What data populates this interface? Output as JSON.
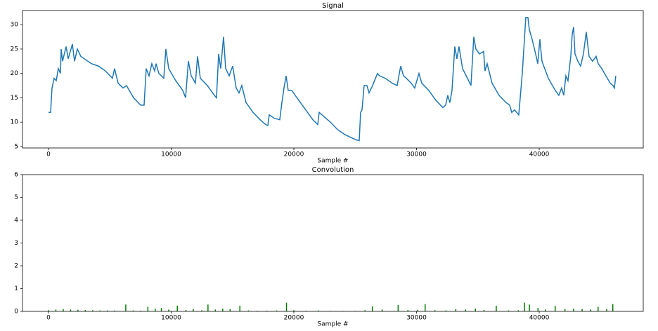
{
  "chart_data": [
    {
      "type": "line",
      "title": "Signal",
      "xlabel": "Sample #",
      "color": "#1f77b4",
      "x": [
        0,
        172,
        287,
        458,
        630,
        802,
        974,
        1031,
        1146,
        1433,
        1604,
        1948,
        2120,
        2349,
        2636,
        2922,
        3495,
        4068,
        4641,
        5214,
        5386,
        5672,
        6074,
        6360,
        6933,
        7506,
        7793,
        7964,
        8193,
        8423,
        8652,
        8767,
        8996,
        9397,
        9569,
        9798,
        10371,
        10944,
        11174,
        11403,
        11632,
        11976,
        12148,
        12377,
        12950,
        13523,
        13695,
        13867,
        14039,
        14268,
        14440,
        14726,
        15013,
        15300,
        15529,
        15758,
        16102,
        16675,
        17248,
        17706,
        17878,
        17993,
        18394,
        18852,
        19024,
        19196,
        19368,
        19539,
        19826,
        20399,
        20972,
        21545,
        21946,
        22061,
        22290,
        22977,
        23550,
        24123,
        24696,
        25155,
        25327,
        25441,
        25556,
        25728,
        25957,
        26129,
        26415,
        26816,
        26988,
        27447,
        28020,
        28421,
        28707,
        28937,
        29166,
        29567,
        29853,
        30197,
        30426,
        30999,
        31572,
        32145,
        32375,
        32546,
        32718,
        32890,
        33119,
        33291,
        33463,
        33750,
        34151,
        34437,
        34667,
        34838,
        35125,
        35469,
        35583,
        35755,
        36156,
        36729,
        37302,
        37589,
        37761,
        37990,
        38334,
        38620,
        38907,
        39079,
        39193,
        39422,
        39709,
        39881,
        40053,
        40225,
        40740,
        41313,
        41600,
        41829,
        42001,
        42173,
        42345,
        42574,
        42689,
        42803,
        42918,
        43147,
        43376,
        43605,
        43835,
        44064,
        44350,
        44637,
        44809,
        45096,
        45439,
        45783,
        46012,
        46127,
        46241
      ],
      "values": [
        12,
        12,
        17,
        19,
        18.5,
        21,
        20,
        25,
        22.5,
        25.5,
        23,
        26,
        22.5,
        25,
        23.5,
        23,
        22,
        21.5,
        20.5,
        19,
        21,
        18,
        17,
        17.5,
        15,
        13.5,
        13.5,
        21,
        19.5,
        22,
        20.5,
        22,
        20,
        19,
        25,
        21,
        18.5,
        16.5,
        15,
        22.5,
        19.5,
        18,
        23.5,
        19,
        17.5,
        15.5,
        15,
        24,
        21,
        27.5,
        21,
        19.5,
        21.5,
        17,
        16,
        17.5,
        14,
        12,
        10.5,
        9.5,
        9.3,
        11.5,
        10.8,
        10.5,
        14,
        17,
        19.5,
        16.5,
        16.5,
        14.5,
        12.5,
        10.5,
        9.5,
        12,
        11.5,
        10,
        8.5,
        7.5,
        6.8,
        6.3,
        6.2,
        12,
        12.5,
        17.5,
        17.5,
        16,
        17.5,
        20,
        19.5,
        19,
        18,
        17.5,
        21.5,
        19.5,
        19,
        18,
        17,
        20,
        18,
        16.5,
        14.5,
        13,
        13.5,
        15.5,
        14,
        16.5,
        25.5,
        23,
        25.5,
        21,
        19,
        17.5,
        27.5,
        25,
        24,
        24.5,
        20.5,
        22,
        18,
        15.5,
        14,
        13.5,
        12,
        12.5,
        11.5,
        20,
        31.5,
        31.5,
        29,
        27,
        24,
        22,
        27,
        22.5,
        19,
        16.5,
        15.5,
        17,
        15.5,
        19.5,
        18.5,
        23.5,
        28,
        29.5,
        24,
        22.5,
        21.5,
        24,
        28.5,
        23.5,
        22.5,
        23.5,
        22,
        21,
        19.5,
        18,
        17.5,
        17,
        19.5
      ],
      "xlim": [
        -2120,
        48480
      ],
      "xticks": [
        0,
        10000,
        20000,
        30000,
        40000
      ],
      "ylim": [
        4.7,
        32.9
      ],
      "yticks": [
        5,
        10,
        15,
        20,
        25,
        30
      ]
    },
    {
      "type": "stem",
      "title": "Convolution",
      "xlabel": "Sample #",
      "color": "#008000",
      "x": [
        0,
        600,
        1200,
        1800,
        2400,
        3000,
        3600,
        4200,
        4800,
        5400,
        6300,
        6900,
        7500,
        8100,
        8700,
        9200,
        9800,
        10500,
        11200,
        11800,
        12500,
        13000,
        13600,
        14200,
        14800,
        15600,
        16300,
        17000,
        17800,
        18600,
        19400,
        20000,
        21000,
        22000,
        23000,
        24000,
        25000,
        25800,
        26400,
        27200,
        28500,
        29300,
        30100,
        30700,
        31500,
        32400,
        33200,
        34000,
        34800,
        35500,
        36500,
        37500,
        38300,
        38800,
        39200,
        39900,
        40500,
        41300,
        42100,
        42800,
        43500,
        44200,
        44800,
        45500,
        46000
      ],
      "values": [
        0.05,
        0.08,
        0.1,
        0.08,
        0.07,
        0.06,
        0.05,
        0.04,
        0.04,
        0.04,
        0.3,
        0.04,
        0.03,
        0.2,
        0.12,
        0.15,
        0.08,
        0.25,
        0.06,
        0.1,
        0.05,
        0.3,
        0.08,
        0.12,
        0.1,
        0.25,
        0.04,
        0.03,
        0.03,
        0.04,
        0.38,
        0.05,
        0.03,
        0.04,
        0.02,
        0.02,
        0.02,
        0.05,
        0.22,
        0.08,
        0.28,
        0.06,
        0.07,
        0.32,
        0.05,
        0.04,
        0.1,
        0.08,
        0.12,
        0.06,
        0.25,
        0.04,
        0.05,
        0.38,
        0.3,
        0.15,
        0.08,
        0.25,
        0.1,
        0.12,
        0.1,
        0.08,
        0.2,
        0.1,
        0.32
      ],
      "xlim": [
        -2120,
        48480
      ],
      "xticks": [
        0,
        10000,
        20000,
        30000,
        40000
      ],
      "ylim": [
        0,
        6
      ],
      "yticks": [
        0,
        1,
        2,
        3,
        4,
        5,
        6
      ]
    }
  ]
}
